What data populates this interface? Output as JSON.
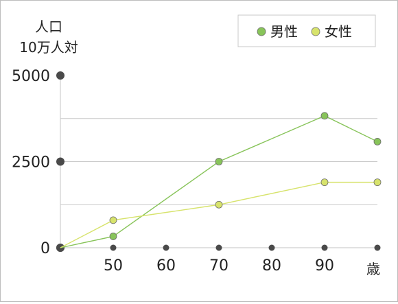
{
  "chart_data": {
    "type": "line",
    "ylabel_line1": "人口",
    "ylabel_line2": "10万人対",
    "xlabel": "歳",
    "x_ticks": [
      "50",
      "60",
      "70",
      "80",
      "90"
    ],
    "y_ticks": [
      "0",
      "2500",
      "5000"
    ],
    "x_range": [
      40,
      100
    ],
    "y_range": [
      0,
      5000
    ],
    "legend_position": "top-right",
    "series": [
      {
        "name": "男性",
        "color": "#88c45a",
        "x": [
          40,
          50,
          70,
          90,
          100
        ],
        "y": [
          0,
          330,
          2500,
          3830,
          3080
        ]
      },
      {
        "name": "女性",
        "color": "#d7e36c",
        "x": [
          40,
          50,
          70,
          90,
          100
        ],
        "y": [
          0,
          800,
          1250,
          1900,
          1900
        ]
      }
    ]
  }
}
